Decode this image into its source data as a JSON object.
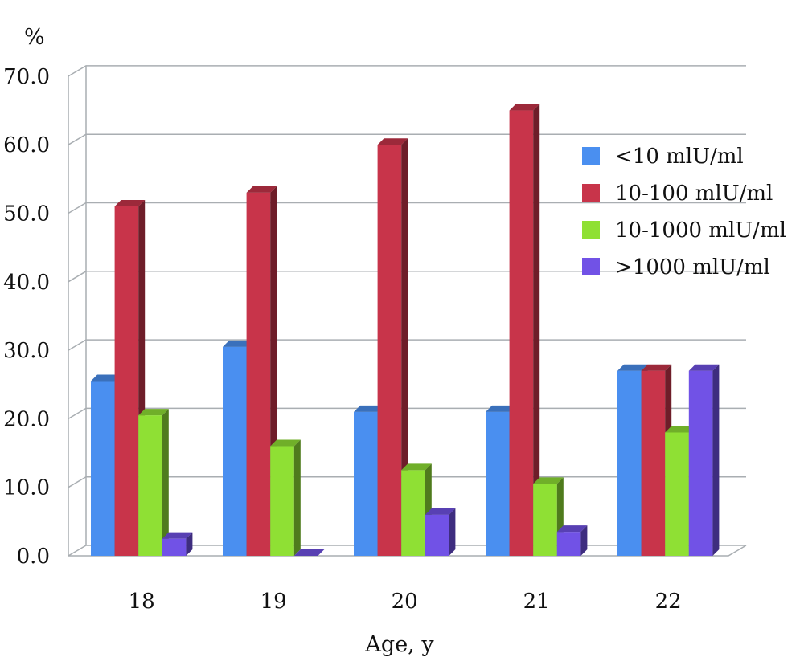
{
  "chart_data": {
    "type": "bar",
    "title": "",
    "xlabel": "Age, y",
    "ylabel": "%",
    "ylim": [
      0,
      70
    ],
    "y_ticks": [
      "0.0",
      "10.0",
      "20.0",
      "30.0",
      "40.0",
      "50.0",
      "60.0",
      "70.0"
    ],
    "categories": [
      "18",
      "19",
      "20",
      "21",
      "22"
    ],
    "series": [
      {
        "name": "<10 mlU/ml",
        "color": "#4a8ff0",
        "values": [
          25.5,
          30.5,
          21.0,
          21.0,
          27.0
        ]
      },
      {
        "name": "10-100 mlU/ml",
        "color": "#c8344a",
        "values": [
          51.0,
          53.0,
          60.0,
          65.0,
          27.0
        ]
      },
      {
        "name": "10-1000 mlU/ml",
        "color": "#8fe034",
        "values": [
          20.5,
          16.0,
          12.5,
          10.5,
          18.0
        ]
      },
      {
        "name": ">1000 mlU/ml",
        "color": "#7152e6",
        "values": [
          2.5,
          0.0,
          6.0,
          3.5,
          27.0
        ]
      }
    ],
    "grid": true,
    "legend_position": "right",
    "style": "3d"
  }
}
